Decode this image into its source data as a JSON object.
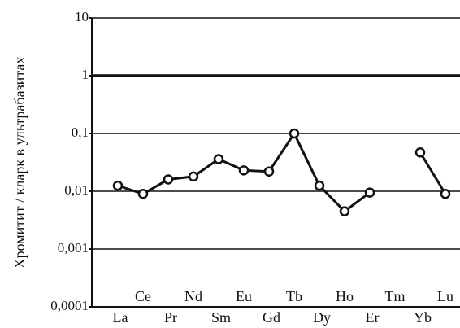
{
  "chart_data": {
    "type": "line",
    "y_label": "Хромитит / кларк в ультрабазитах",
    "categories": [
      "La",
      "Ce",
      "Pr",
      "Nd",
      "Sm",
      "Eu",
      "Gd",
      "Tb",
      "Dy",
      "Ho",
      "Er",
      "Tm",
      "Yb",
      "Lu"
    ],
    "series": [
      {
        "color": "#111111",
        "values": [
          0.0125,
          0.009,
          0.016,
          0.018,
          0.036,
          0.023,
          0.022,
          0.1,
          0.0125,
          0.0045,
          0.0095,
          null,
          0.047,
          0.009
        ]
      }
    ],
    "yscale": "log",
    "ylim": [
      0.0001,
      10
    ],
    "yticks": [
      10,
      1,
      {
        "value": 0.1,
        "label": "0,1"
      },
      {
        "value": 0.01,
        "label": "0,01"
      },
      {
        "value": 0.001,
        "label": "0,001"
      },
      {
        "value": 0.0001,
        "label": "0,0001"
      }
    ],
    "grid": true,
    "emphasized_y": 1
  }
}
